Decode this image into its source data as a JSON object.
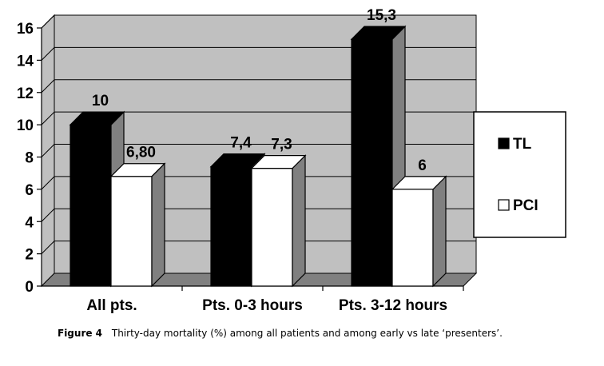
{
  "chart_data": {
    "type": "bar",
    "categories": [
      "All pts.",
      "Pts. 0-3 hours",
      "Pts. 3-12 hours"
    ],
    "series": [
      {
        "name": "TL",
        "values": [
          10,
          7.4,
          15.3
        ],
        "labels": [
          "10",
          "7,4",
          "15,3"
        ],
        "color": "#000000"
      },
      {
        "name": "PCI",
        "values": [
          6.8,
          7.3,
          6
        ],
        "labels": [
          "6,80",
          "7,3",
          "6"
        ],
        "color": "#ffffff"
      }
    ],
    "ylim": [
      0,
      16
    ],
    "yticks": [
      0,
      2,
      4,
      6,
      8,
      10,
      12,
      14,
      16
    ],
    "grid": true,
    "legend_position": "right",
    "three_d": true,
    "colors": {
      "wall": "#c0c0c0",
      "floor": "#808080",
      "bar_side": "#808080"
    }
  },
  "caption": {
    "figure_label": "Figure 4",
    "text": "Thirty-day mortality (%) among all patients and among early vs late ‘presenters’."
  }
}
